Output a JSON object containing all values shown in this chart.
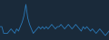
{
  "values": [
    -2,
    -2,
    -5,
    -5,
    -5,
    -4,
    -3,
    -4,
    -5,
    -3,
    -4,
    -2,
    0,
    3,
    8,
    2,
    -1,
    -3,
    -5,
    -4,
    -3,
    -2,
    -3,
    -2,
    -3,
    -2,
    -3,
    -2,
    -1,
    -2,
    -3,
    -2,
    -2,
    -1,
    -2,
    -3,
    -2,
    -1,
    -2,
    -3,
    -2,
    -1,
    -2,
    -3,
    -4,
    -2,
    -3,
    -2,
    -3,
    -4,
    -3,
    -4,
    -5,
    -4,
    -3,
    -4,
    -5,
    -6,
    -5,
    -4
  ],
  "line_color": "#2b7bba",
  "bg_color": "#1a2a3a",
  "linewidth": 0.6,
  "ylim": [
    -8,
    10
  ]
}
